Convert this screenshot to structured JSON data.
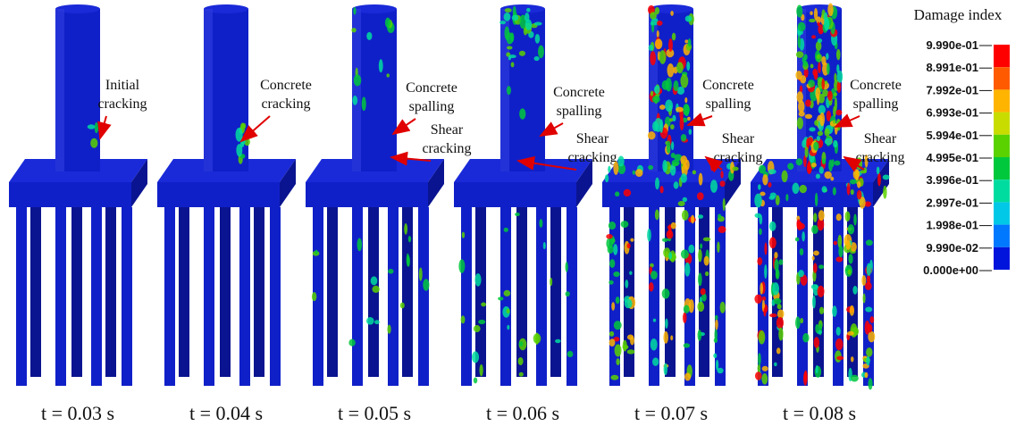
{
  "panels": [
    {
      "time": "t = 0.03 s",
      "annotations": [
        {
          "lines": [
            "Initial",
            "cracking"
          ]
        }
      ]
    },
    {
      "time": "t = 0.04 s",
      "annotations": [
        {
          "lines": [
            "Concrete",
            "cracking"
          ]
        }
      ]
    },
    {
      "time": "t = 0.05 s",
      "annotations": [
        {
          "lines": [
            "Concrete",
            "spalling"
          ]
        },
        {
          "lines": [
            "Shear",
            "cracking"
          ]
        }
      ]
    },
    {
      "time": "t = 0.06 s",
      "annotations": [
        {
          "lines": [
            "Concrete",
            "spalling"
          ]
        },
        {
          "lines": [
            "Shear",
            "cracking"
          ]
        }
      ]
    },
    {
      "time": "t = 0.07 s",
      "annotations": [
        {
          "lines": [
            "Concrete",
            "spalling"
          ]
        },
        {
          "lines": [
            "Shear",
            "cracking"
          ]
        }
      ]
    },
    {
      "time": "t = 0.08 s",
      "annotations": [
        {
          "lines": [
            "Concrete",
            "spalling"
          ]
        },
        {
          "lines": [
            "Shear",
            "cracking"
          ]
        }
      ]
    }
  ],
  "legend": {
    "title": "Damage index",
    "labels": [
      "9.990e-01",
      "8.991e-01",
      "7.992e-01",
      "6.993e-01",
      "5.994e-01",
      "4.995e-01",
      "3.996e-01",
      "2.997e-01",
      "1.998e-01",
      "9.990e-02",
      "0.000e+00"
    ],
    "segment_colors": [
      "#ff0000",
      "#ff5a00",
      "#ffb400",
      "#c8dc00",
      "#5ad200",
      "#00c83c",
      "#00dca0",
      "#00c8e6",
      "#0078ff",
      "#0014dc"
    ]
  }
}
